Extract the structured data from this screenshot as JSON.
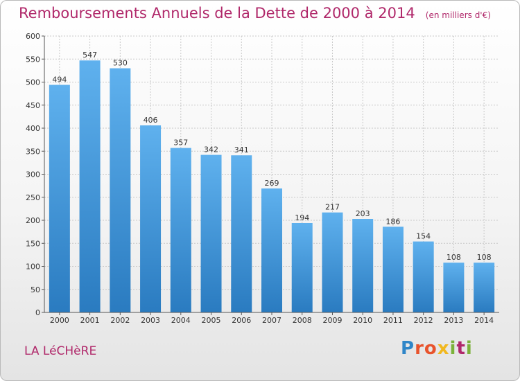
{
  "header": {
    "title": "Remboursements Annuels de la Dette de 2000 à 2014",
    "unit": "(en milliers d'€)"
  },
  "footer": {
    "commune": "LA LéCHèRE",
    "logo_text": "Proxiti"
  },
  "colors": {
    "title": "#b0286a",
    "bar_top": "#5fb1ee",
    "bar_bottom": "#2a7bc0",
    "grid": "#c8c8c8",
    "axis_text": "#333333"
  },
  "chart_data": {
    "type": "bar",
    "title": "Remboursements Annuels de la Dette de 2000 à 2014",
    "xlabel": "",
    "ylabel": "",
    "categories": [
      "2000",
      "2001",
      "2002",
      "2003",
      "2004",
      "2005",
      "2006",
      "2007",
      "2008",
      "2009",
      "2010",
      "2011",
      "2012",
      "2013",
      "2014"
    ],
    "values": [
      494,
      547,
      530,
      406,
      357,
      342,
      341,
      269,
      194,
      217,
      203,
      186,
      154,
      108,
      108
    ],
    "ylim": [
      0,
      600
    ],
    "yticks": [
      0,
      50,
      100,
      150,
      200,
      250,
      300,
      350,
      400,
      450,
      500,
      550,
      600
    ],
    "grid": true,
    "data_labels": true
  }
}
